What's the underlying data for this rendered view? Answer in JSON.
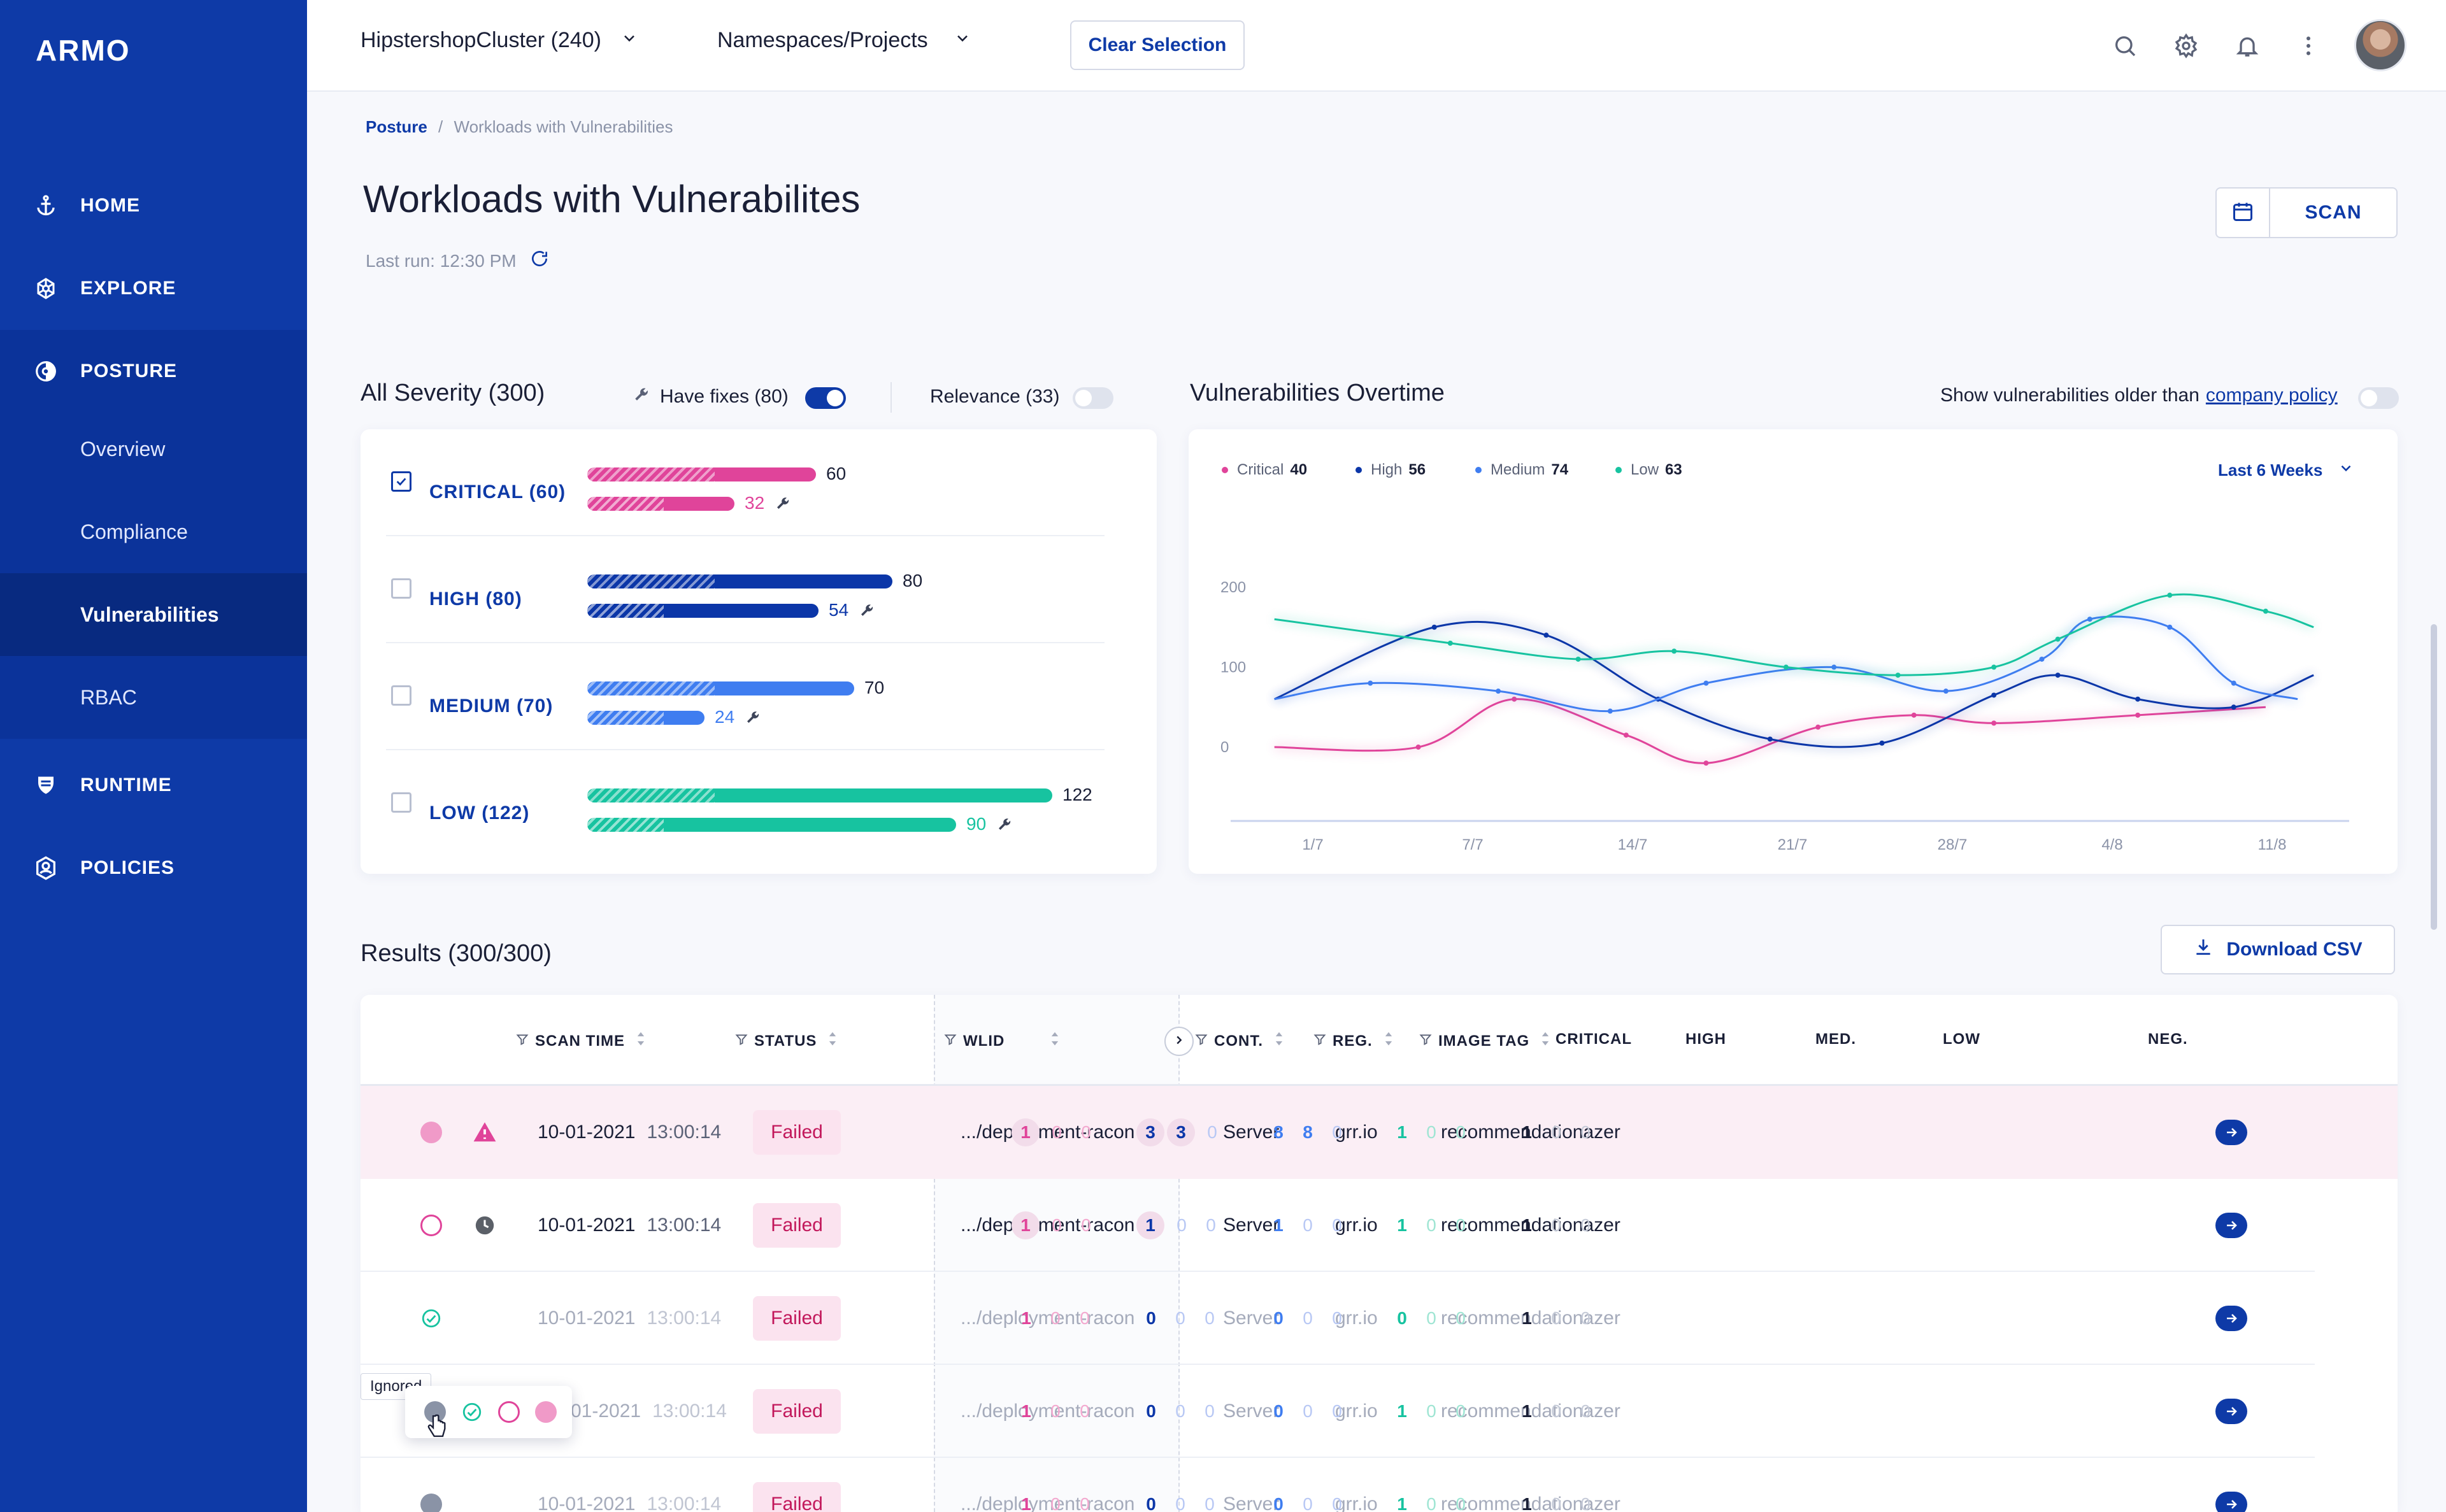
{
  "app": {
    "logo": "ARMO"
  },
  "sidebar": {
    "items": [
      {
        "label": "HOME",
        "icon": "anchor-icon"
      },
      {
        "label": "EXPLORE",
        "icon": "helm-icon"
      },
      {
        "label": "POSTURE",
        "icon": "posture-icon"
      },
      {
        "label": "RUNTIME",
        "icon": "runtime-icon"
      },
      {
        "label": "POLICIES",
        "icon": "policies-icon"
      }
    ],
    "sub_items": [
      "Overview",
      "Compliance",
      "Vulnerabilities",
      "RBAC"
    ]
  },
  "topbar": {
    "cluster": "HipstershopCluster (240)",
    "namespace": "Namespaces/Projects",
    "clear_label": "Clear Selection"
  },
  "breadcrumb": {
    "root": "Posture",
    "current": "Workloads with Vulnerabilities"
  },
  "page": {
    "title": "Workloads with Vulnerabilites",
    "last_run": "Last run: 12:30 PM",
    "scan_label": "SCAN"
  },
  "severity": {
    "title": "All Severity (300)",
    "have_fixes_label": "Have fixes (80)",
    "have_fixes_on": true,
    "relevance_label": "Relevance (33)",
    "relevance_on": false,
    "rows": [
      {
        "label": "CRITICAL (60)",
        "color": "#e0449a",
        "checked": true,
        "total": 60,
        "fixes": 32
      },
      {
        "label": "HIGH (80)",
        "color": "#0b36a8",
        "checked": false,
        "total": 80,
        "fixes": 54
      },
      {
        "label": "MEDIUM (70)",
        "color": "#3f7df0",
        "checked": false,
        "total": 70,
        "fixes": 24
      },
      {
        "label": "LOW (122)",
        "color": "#17c3a0",
        "checked": false,
        "total": 122,
        "fixes": 90
      }
    ]
  },
  "overtime": {
    "title": "Vulnerabilities Overtime",
    "older_label": "Show vulnerabilities older than",
    "policy_link": "company policy",
    "range": "Last 6 Weeks"
  },
  "chart_data": {
    "type": "line",
    "x": [
      "1/7",
      "7/7",
      "14/7",
      "21/7",
      "28/7",
      "4/8",
      "11/8"
    ],
    "yticks": [
      0,
      100,
      200
    ],
    "ylim": [
      -90,
      200
    ],
    "legend": [
      {
        "name": "Critical",
        "value": "40",
        "color": "#e0449a"
      },
      {
        "name": "High",
        "value": "56",
        "color": "#0b36a8"
      },
      {
        "name": "Medium",
        "value": "74",
        "color": "#3f7df0"
      },
      {
        "name": "Low",
        "value": "63",
        "color": "#17c3a0"
      }
    ],
    "series": [
      {
        "name": "Critical",
        "color": "#e0449a",
        "points": [
          [
            -0.3,
            0
          ],
          [
            0.6,
            0
          ],
          [
            1.2,
            60
          ],
          [
            1.9,
            15
          ],
          [
            2.4,
            -20
          ],
          [
            3.1,
            25
          ],
          [
            3.7,
            40
          ],
          [
            4.2,
            30
          ],
          [
            5.1,
            40
          ],
          [
            5.9,
            50
          ]
        ]
      },
      {
        "name": "High",
        "color": "#0b36a8",
        "points": [
          [
            -0.3,
            60
          ],
          [
            0.7,
            150
          ],
          [
            1.4,
            140
          ],
          [
            2.1,
            60
          ],
          [
            2.8,
            10
          ],
          [
            3.5,
            5
          ],
          [
            4.2,
            65
          ],
          [
            4.6,
            90
          ],
          [
            5.1,
            60
          ],
          [
            5.7,
            50
          ],
          [
            6.2,
            90
          ]
        ]
      },
      {
        "name": "Medium",
        "color": "#3f7df0",
        "points": [
          [
            -0.3,
            60
          ],
          [
            0.3,
            80
          ],
          [
            1.1,
            70
          ],
          [
            1.8,
            45
          ],
          [
            2.4,
            80
          ],
          [
            3.2,
            100
          ],
          [
            3.9,
            70
          ],
          [
            4.5,
            110
          ],
          [
            4.8,
            160
          ],
          [
            5.3,
            150
          ],
          [
            5.7,
            80
          ],
          [
            6.1,
            60
          ]
        ]
      },
      {
        "name": "Low",
        "color": "#17c3a0",
        "points": [
          [
            -0.3,
            160
          ],
          [
            0.8,
            130
          ],
          [
            1.6,
            110
          ],
          [
            2.2,
            120
          ],
          [
            2.9,
            100
          ],
          [
            3.6,
            90
          ],
          [
            4.2,
            100
          ],
          [
            4.6,
            135
          ],
          [
            5.3,
            190
          ],
          [
            5.9,
            170
          ],
          [
            6.2,
            150
          ]
        ]
      }
    ]
  },
  "results": {
    "title": "Results (300/300)",
    "download_label": "Download CSV",
    "columns": [
      "SCAN TIME",
      "STATUS",
      "WLID",
      "CONT.",
      "REG.",
      "IMAGE TAG",
      "CRITICAL",
      "HIGH",
      "MED.",
      "LOW",
      "NEG."
    ],
    "rows": [
      {
        "date": "10-01-2021",
        "time": "13:00:14",
        "status": "Failed",
        "wlid": ".../deployment-racon",
        "cont": "Server",
        "reg": "grr.io",
        "tag": "recommendationazer",
        "critical": [
          "1",
          "0",
          "0"
        ],
        "high": [
          "3",
          "3",
          "0"
        ],
        "med": [
          "8",
          "8",
          "0"
        ],
        "low": [
          "1",
          "0",
          "0"
        ],
        "neg": [
          "1",
          "0",
          "0"
        ]
      },
      {
        "date": "10-01-2021",
        "time": "13:00:14",
        "status": "Failed",
        "wlid": ".../deployment-racon",
        "cont": "Server",
        "reg": "grr.io",
        "tag": "recommendationazer",
        "critical": [
          "1",
          "0",
          "0"
        ],
        "high": [
          "1",
          "0",
          "0"
        ],
        "med": [
          "1",
          "0",
          "0"
        ],
        "low": [
          "1",
          "0",
          "0"
        ],
        "neg": [
          "1",
          "0",
          "0"
        ]
      },
      {
        "date": "10-01-2021",
        "time": "13:00:14",
        "status": "Failed",
        "wlid": ".../deployment-racon",
        "cont": "Server",
        "reg": "grr.io",
        "tag": "recommendationazer",
        "critical": [
          "1",
          "0",
          "0"
        ],
        "high": [
          "0",
          "0",
          "0"
        ],
        "med": [
          "0",
          "0",
          "0"
        ],
        "low": [
          "0",
          "0",
          "0"
        ],
        "neg": [
          "1",
          "0",
          "0"
        ]
      },
      {
        "date": "01-2021",
        "time": "13:00:14",
        "status": "Failed",
        "wlid": ".../deployment-racon",
        "cont": "Server",
        "reg": "grr.io",
        "tag": "recommendationazer",
        "critical": [
          "1",
          "0",
          "0"
        ],
        "high": [
          "0",
          "0",
          "0"
        ],
        "med": [
          "0",
          "0",
          "0"
        ],
        "low": [
          "1",
          "0",
          "0"
        ],
        "neg": [
          "1",
          "0",
          "0"
        ]
      },
      {
        "date": "10-01-2021",
        "time": "13:00:14",
        "status": "Failed",
        "wlid": ".../deployment-racon",
        "cont": "Server",
        "reg": "grr.io",
        "tag": "recommendationazer",
        "critical": [
          "1",
          "0",
          "0"
        ],
        "high": [
          "0",
          "0",
          "0"
        ],
        "med": [
          "0",
          "0",
          "0"
        ],
        "low": [
          "1",
          "0",
          "0"
        ],
        "neg": [
          "1",
          "0",
          "0"
        ]
      }
    ],
    "tooltip": "Ignored"
  }
}
